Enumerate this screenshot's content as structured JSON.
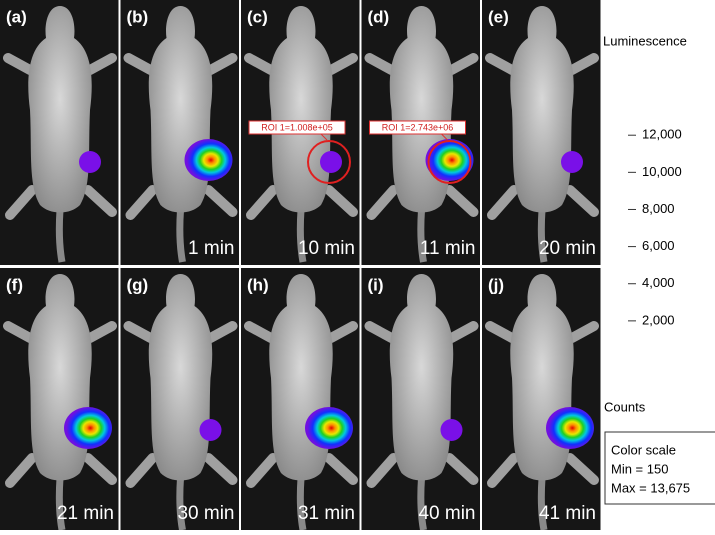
{
  "panels": [
    {
      "label": "(a)"
    },
    {
      "label": "(b)",
      "time": "1 min"
    },
    {
      "label": "(c)",
      "time": "10 min",
      "roi": "ROI 1=1.008e+05"
    },
    {
      "label": "(d)",
      "time": "11 min",
      "roi": "ROI 1=2.743e+06"
    },
    {
      "label": "(e)",
      "time": "20 min"
    },
    {
      "label": "(f)",
      "time": "21 min"
    },
    {
      "label": "(g)",
      "time": "30 min"
    },
    {
      "label": "(h)",
      "time": "31 min"
    },
    {
      "label": "(i)",
      "time": "40 min"
    },
    {
      "label": "(j)",
      "time": "41 min"
    }
  ],
  "colorbar": {
    "title": "Luminescence",
    "unit": "Counts",
    "lim": [
      0,
      15350
    ],
    "ticks": [
      {
        "value": 2000,
        "label": "2,000"
      },
      {
        "value": 4000,
        "label": "4,000"
      },
      {
        "value": 6000,
        "label": "6,000"
      },
      {
        "value": 8000,
        "label": "8,000"
      },
      {
        "value": 10000,
        "label": "10,000"
      },
      {
        "value": 12000,
        "label": "12,000"
      }
    ]
  },
  "scale_box": {
    "title": "Color scale",
    "min": "Min = 150",
    "max": "Max = 13,675"
  }
}
